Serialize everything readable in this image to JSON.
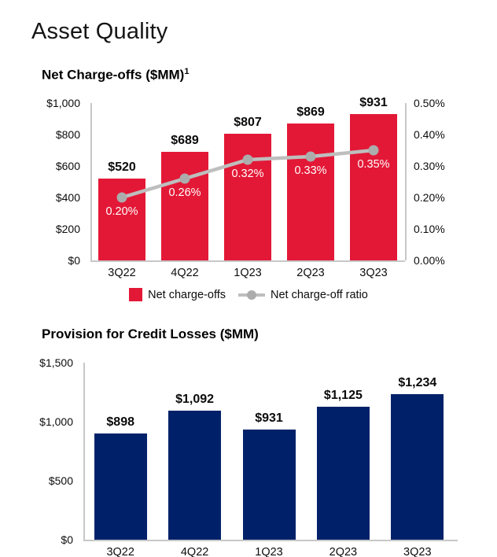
{
  "page": {
    "title": "Asset Quality"
  },
  "chart_data": [
    {
      "type": "bar+line",
      "title": "Net Charge-offs ($MM)",
      "footnote_superscript": "1",
      "categories": [
        "3Q22",
        "4Q22",
        "1Q23",
        "2Q23",
        "3Q23"
      ],
      "series": [
        {
          "name": "Net charge-offs",
          "type": "bar",
          "axis": "left",
          "color": "#E31836",
          "values": [
            520,
            689,
            807,
            869,
            931
          ],
          "data_labels": [
            "$520",
            "$689",
            "$807",
            "$869",
            "$931"
          ]
        },
        {
          "name": "Net charge-off ratio",
          "type": "line",
          "axis": "right",
          "color": "#BEBEBE",
          "marker_color": "#ACACAC",
          "values": [
            0.2,
            0.26,
            0.32,
            0.33,
            0.35
          ],
          "data_labels": [
            "0.20%",
            "0.26%",
            "0.32%",
            "0.33%",
            "0.35%"
          ]
        }
      ],
      "left_axis": {
        "min": 0,
        "max": 1000,
        "tick_labels": [
          "$1,000",
          "$800",
          "$600",
          "$400",
          "$200",
          "$0"
        ]
      },
      "right_axis": {
        "min": 0,
        "max": 0.5,
        "tick_labels": [
          "0.50%",
          "0.40%",
          "0.30%",
          "0.20%",
          "0.10%",
          "0.00%"
        ]
      },
      "grid": false,
      "legend_position": "bottom",
      "legend": [
        {
          "label": "Net charge-offs",
          "swatch": "bar",
          "color": "#E31836"
        },
        {
          "label": "Net charge-off ratio",
          "swatch": "line",
          "color": "#BEBEBE",
          "marker_color": "#ACACAC"
        }
      ]
    },
    {
      "type": "bar",
      "title": "Provision for Credit Losses ($MM)",
      "categories": [
        "3Q22",
        "4Q22",
        "1Q23",
        "2Q23",
        "3Q23"
      ],
      "series": [
        {
          "name": "Provision for credit losses",
          "type": "bar",
          "axis": "left",
          "color": "#002169",
          "values": [
            898,
            1092,
            931,
            1125,
            1234
          ],
          "data_labels": [
            "$898",
            "$1,092",
            "$931",
            "$1,125",
            "$1,234"
          ]
        }
      ],
      "left_axis": {
        "min": 0,
        "max": 1500,
        "tick_labels": [
          "$1,500",
          "$1,000",
          "$500",
          "$0"
        ]
      },
      "grid": false,
      "legend_position": "none"
    }
  ]
}
